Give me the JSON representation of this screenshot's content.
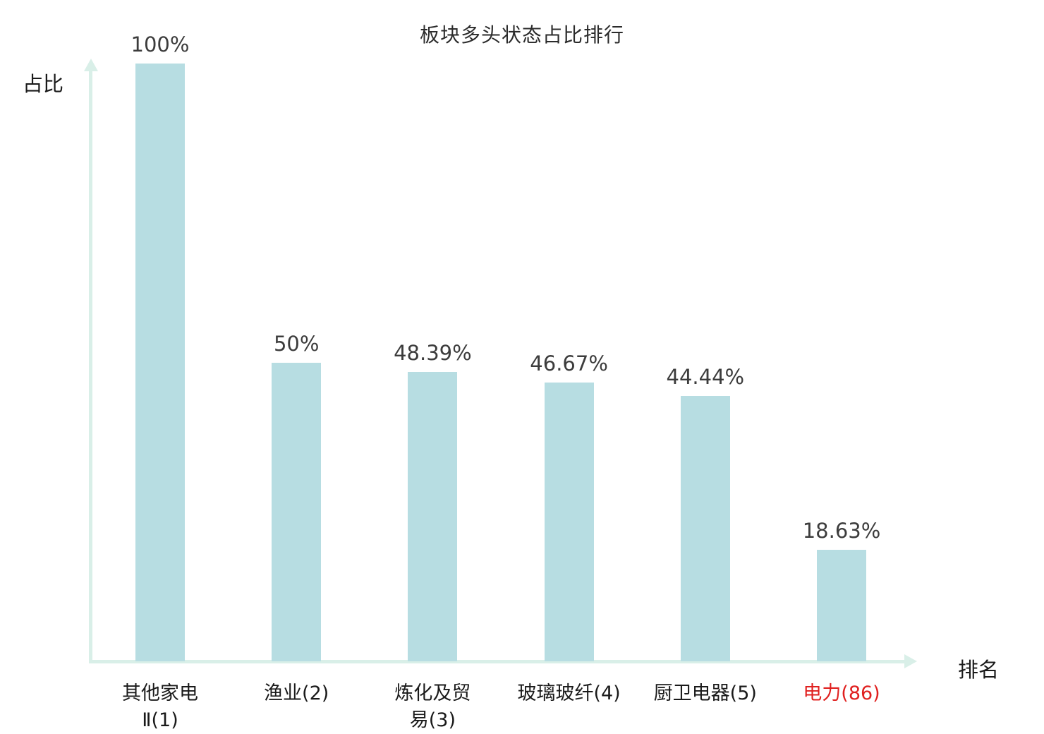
{
  "chart_data": {
    "type": "bar",
    "title": "板块多头状态占比排行",
    "ylabel": "占比",
    "xlabel": "排名",
    "ylim": [
      0,
      100
    ],
    "grid": false,
    "legend": "none",
    "categories": [
      "其他家电Ⅱ(1)",
      "渔业(2)",
      "炼化及贸易(3)",
      "玻璃玻纤(4)",
      "厨卫电器(5)",
      "电力(86)"
    ],
    "values": [
      100,
      50,
      48.39,
      46.67,
      44.44,
      18.63
    ],
    "bars": [
      {
        "category": "其他家电Ⅱ(1)",
        "category_lines": [
          "其他家电",
          "Ⅱ(1)"
        ],
        "value": 100,
        "value_label": "100%",
        "highlighted": false
      },
      {
        "category": "渔业(2)",
        "category_lines": [
          "渔业(2)"
        ],
        "value": 50,
        "value_label": "50%",
        "highlighted": false
      },
      {
        "category": "炼化及贸易(3)",
        "category_lines": [
          "炼化及贸",
          "易(3)"
        ],
        "value": 48.39,
        "value_label": "48.39%",
        "highlighted": false
      },
      {
        "category": "玻璃玻纤(4)",
        "category_lines": [
          "玻璃玻纤(4)"
        ],
        "value": 46.67,
        "value_label": "46.67%",
        "highlighted": false
      },
      {
        "category": "厨卫电器(5)",
        "category_lines": [
          "厨卫电器(5)"
        ],
        "value": 44.44,
        "value_label": "44.44%",
        "highlighted": false
      },
      {
        "category": "电力(86)",
        "category_lines": [
          "电力(86)"
        ],
        "value": 18.63,
        "value_label": "18.63%",
        "highlighted": true
      }
    ],
    "colors": {
      "bar_fill": "#b7dde2",
      "axis": "#d9efe8",
      "value_label": "#3c3c3c",
      "category_label": "#1a1a1a",
      "highlight_label": "#e0201f"
    }
  }
}
